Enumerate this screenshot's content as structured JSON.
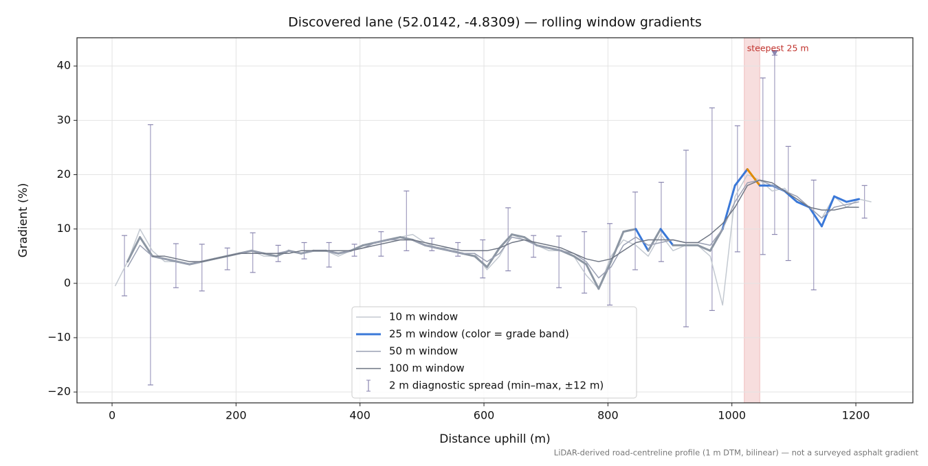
{
  "chart_data": {
    "type": "line",
    "title": "Discovered lane (52.0142, -4.8309) — rolling window gradients",
    "x_label": "Distance uphill (m)",
    "y_label": "Gradient (%)",
    "footnote": "LiDAR-derived road-centreline profile (1 m DTM, bilinear) — not a surveyed asphalt gradient",
    "xlim": [
      -56.6,
      1292
    ],
    "ylim": [
      -22,
      45.2
    ],
    "xticks": [
      0,
      200,
      400,
      600,
      800,
      1000,
      1200
    ],
    "yticks": [
      {
        "value": -20,
        "label": "−20"
      },
      {
        "value": -10,
        "label": "−10"
      },
      0,
      10,
      20,
      30,
      40
    ],
    "grid": true,
    "legend": "lower center",
    "x": [
      5,
      25,
      45,
      65,
      85,
      105,
      125,
      145,
      165,
      185,
      205,
      225,
      245,
      265,
      285,
      305,
      325,
      345,
      365,
      385,
      405,
      425,
      445,
      465,
      485,
      505,
      525,
      545,
      565,
      585,
      605,
      625,
      645,
      665,
      685,
      705,
      725,
      745,
      765,
      785,
      805,
      825,
      845,
      865,
      885,
      905,
      925,
      945,
      965,
      985,
      1005,
      1025,
      1045,
      1065,
      1085,
      1105,
      1125,
      1145,
      1165,
      1185,
      1205,
      1225
    ],
    "series": [
      {
        "name": "10 m window",
        "color": "#c3c9d1",
        "width": 1.5,
        "values": [
          -0.5,
          4,
          10,
          6,
          4,
          4,
          3.5,
          4,
          4.5,
          5,
          5.5,
          6,
          5,
          5,
          6,
          5.5,
          6,
          6,
          5,
          6,
          6.5,
          7.5,
          8,
          8.5,
          9,
          7.5,
          6.5,
          6.5,
          5.5,
          5.5,
          2.5,
          5,
          9,
          8,
          7,
          6,
          6,
          5,
          1.5,
          -1,
          5,
          8,
          7,
          5,
          9,
          6,
          7,
          7,
          5,
          -4,
          16,
          20,
          19,
          17,
          17.5,
          15,
          14,
          12,
          16,
          14,
          15.5,
          15
        ]
      },
      {
        "name": "25 m window (color = grade band)",
        "color": "#3a78d8",
        "width": 3,
        "values": [
          null,
          4,
          8.5,
          5,
          4.5,
          4,
          3.5,
          4,
          4.5,
          5,
          5.5,
          6,
          5.5,
          5,
          6,
          5.5,
          6,
          6,
          5.5,
          6,
          7,
          7.5,
          8,
          8.5,
          8,
          7,
          6.5,
          6,
          5.5,
          5,
          3,
          6.5,
          9,
          8.5,
          7,
          6.5,
          6,
          5,
          3.5,
          -1,
          4,
          9.5,
          10,
          6,
          10,
          7,
          7,
          7,
          6,
          10,
          18,
          21,
          18,
          18,
          17,
          15,
          14,
          10.5,
          16,
          15,
          15.5,
          null
        ],
        "colors": [
          "#8c96a3",
          "#8c96a3",
          "#8c96a3",
          "#8c96a3",
          "#8c96a3",
          "#8c96a3",
          "#8c96a3",
          "#8c96a3",
          "#8c96a3",
          "#8c96a3",
          "#8c96a3",
          "#8c96a3",
          "#8c96a3",
          "#8c96a3",
          "#8c96a3",
          "#8c96a3",
          "#8c96a3",
          "#8c96a3",
          "#8c96a3",
          "#8c96a3",
          "#8c96a3",
          "#8c96a3",
          "#8c96a3",
          "#8c96a3",
          "#8c96a3",
          "#8c96a3",
          "#8c96a3",
          "#8c96a3",
          "#8c96a3",
          "#8c96a3",
          "#8c96a3",
          "#8c96a3",
          "#8c96a3",
          "#8c96a3",
          "#8c96a3",
          "#8c96a3",
          "#8c96a3",
          "#8c96a3",
          "#8c96a3",
          "#8c96a3",
          "#8c96a3",
          "#8c96a3",
          "#3a78d8",
          "#8c96a3",
          "#3a78d8",
          "#8c96a3",
          "#8c96a3",
          "#8c96a3",
          "#8c96a3",
          "#3a78d8",
          "#3a78d8",
          "#e08a00",
          "#3a78d8",
          "#3a78d8",
          "#3a78d8",
          "#3a78d8",
          "#3a78d8",
          "#3a78d8",
          "#3a78d8",
          "#3a78d8",
          "#3a78d8",
          "#8c96a3"
        ]
      },
      {
        "name": "50 m window",
        "color": "#9aa0b3",
        "width": 1.5,
        "values": [
          null,
          3,
          7,
          5,
          4.5,
          4,
          3.5,
          4,
          4.5,
          5,
          5.5,
          6,
          5.5,
          5.5,
          6,
          5.5,
          6,
          6,
          5.5,
          6,
          6.5,
          7.5,
          8,
          8,
          8,
          7,
          6.5,
          6,
          5.5,
          5.5,
          4,
          5.5,
          8.5,
          8,
          7,
          6.5,
          6,
          5.5,
          4,
          1,
          3,
          7,
          8.5,
          7,
          7.5,
          8,
          7.5,
          7.5,
          7,
          10,
          15,
          18.5,
          19,
          18,
          17,
          16,
          14,
          12,
          14,
          14.5,
          15,
          null
        ]
      },
      {
        "name": "100 m window",
        "color": "#6f7684",
        "width": 1.5,
        "values": [
          null,
          null,
          null,
          5,
          5,
          4.5,
          4,
          4,
          4.5,
          5,
          5.5,
          5.5,
          5.5,
          5.5,
          5.5,
          6,
          6,
          6,
          6,
          6,
          6.5,
          7,
          7.5,
          8,
          8,
          7.5,
          7,
          6.5,
          6,
          6,
          6,
          6.5,
          7.5,
          8,
          7.5,
          7,
          6.5,
          5.5,
          4.5,
          4,
          4.5,
          6,
          7.5,
          8,
          8,
          8,
          7.5,
          7.5,
          9,
          11,
          14,
          18,
          19,
          18.5,
          17,
          15.5,
          14,
          13.5,
          13.5,
          14,
          14,
          null
        ]
      }
    ],
    "error_bars": {
      "name": "2 m diagnostic spread (min–max, ±12 m)",
      "color": "#8a86b0",
      "x": [
        20,
        62,
        103,
        145,
        186,
        227,
        268,
        310,
        350,
        391,
        434,
        475,
        516,
        558,
        598,
        639,
        680,
        721,
        762,
        803,
        844,
        886,
        926,
        968,
        1009,
        1050,
        1069,
        1091,
        1132,
        1214
      ],
      "min": [
        -2.3,
        -18.7,
        -0.8,
        -1.4,
        2.5,
        2,
        4,
        4.5,
        3,
        5,
        5,
        6,
        6,
        5,
        1,
        2.3,
        4.8,
        -0.8,
        -1.8,
        -4,
        2.5,
        4,
        -8,
        -5,
        5.8,
        5.3,
        9,
        4.2,
        -1.2,
        12
      ],
      "max": [
        8.8,
        29.2,
        7.3,
        7.2,
        6.5,
        9.3,
        7,
        7.5,
        7.5,
        7.2,
        9.5,
        17,
        8.3,
        7.5,
        8,
        13.9,
        8.8,
        8.7,
        9.5,
        11,
        16.8,
        18.6,
        24.5,
        32.3,
        29,
        37.8,
        42,
        25.2,
        19,
        18
      ]
    },
    "highlight": {
      "label": "steepest 25 m",
      "xlim": [
        1020,
        1045
      ],
      "color": "#e8a0a0",
      "text_color": "#c0302a",
      "marker": [
        1069,
        42.3
      ]
    }
  }
}
